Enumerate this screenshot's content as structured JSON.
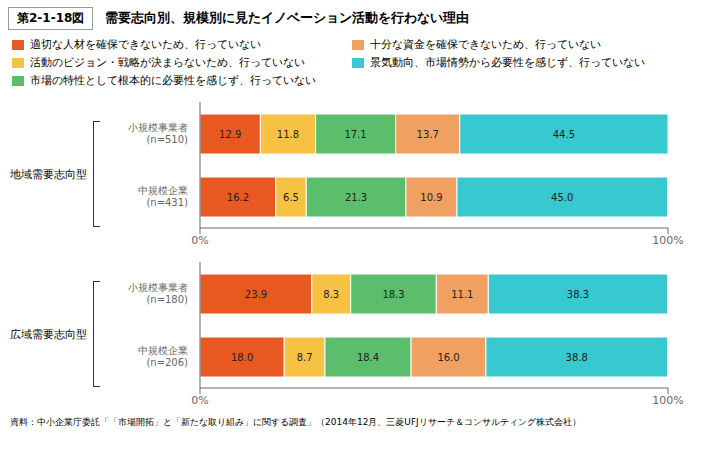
{
  "chart_data": [
    {
      "type": "bar",
      "orientation": "horizontal",
      "stacked": true,
      "data_labels": true,
      "legend": "top",
      "title": "需要志向別、規模別に見たイノベーション活動を行わない理由",
      "subtitle": "第2-1-18図",
      "ylabel": "地域需要志向型",
      "categories": [
        "小規模事業者\n(n=510)",
        "中規模企業\n(n=431)"
      ],
      "series": [
        {
          "name": "適切な人材を確保できないため、行っていない",
          "color": "#E85820",
          "values": [
            12.9,
            16.2
          ],
          "value_labels": [
            "12.9",
            "16.2"
          ]
        },
        {
          "name": "活動のビジョン・戦略が決まらないため、行っていない",
          "color": "#F7C244",
          "values": [
            11.8,
            6.5
          ],
          "value_labels": [
            "11.8",
            "6.5"
          ]
        },
        {
          "name": "市場の特性として根本的に必要性を感じず、行っていない",
          "color": "#5BBE6C",
          "values": [
            17.1,
            21.3
          ],
          "value_labels": [
            "17.1",
            "21.3"
          ]
        },
        {
          "name": "十分な資金を確保できないため、行っていない",
          "color": "#F0A060",
          "values": [
            13.7,
            10.9
          ],
          "value_labels": [
            "13.7",
            "10.9"
          ]
        },
        {
          "name": "景気動向、市場情勢から必要性を感じず、行っていない",
          "color": "#38C8D0",
          "values": [
            44.5,
            45.0
          ],
          "value_labels": [
            "44.5",
            "45.0"
          ]
        }
      ],
      "xlim": [
        0,
        100
      ],
      "xticks": [
        {
          "value": 0,
          "label": "0%"
        },
        {
          "value": 100,
          "label": "100%"
        }
      ]
    },
    {
      "type": "bar",
      "orientation": "horizontal",
      "stacked": true,
      "data_labels": true,
      "ylabel": "広域需要志向型",
      "categories": [
        "小規模事業者\n(n=180)",
        "中規模企業\n(n=206)"
      ],
      "series": [
        {
          "color": "#E85820",
          "values": [
            23.9,
            18.0
          ],
          "value_labels": [
            "23.9",
            "18.0"
          ]
        },
        {
          "color": "#F7C244",
          "values": [
            8.3,
            8.7
          ],
          "value_labels": [
            "8.3",
            "8.7"
          ]
        },
        {
          "color": "#5BBE6C",
          "values": [
            18.3,
            18.4
          ],
          "value_labels": [
            "18.3",
            "18.4"
          ]
        },
        {
          "color": "#F0A060",
          "values": [
            11.1,
            16.0
          ],
          "value_labels": [
            "11.1",
            "16.0"
          ]
        },
        {
          "color": "#38C8D0",
          "values": [
            38.3,
            38.8
          ],
          "value_labels": [
            "38.3",
            "38.8"
          ]
        }
      ],
      "xlim": [
        0,
        100
      ],
      "xticks": [
        {
          "value": 0,
          "label": "0%"
        },
        {
          "value": 100,
          "label": "100%"
        }
      ],
      "annotations": [
        "資料：中小企業庁委託「「市場開拓」と「新たな取り組み」に関する調査」（2014年12月、三菱UFJリサーチ＆コンサルティング株式会社）"
      ]
    }
  ]
}
